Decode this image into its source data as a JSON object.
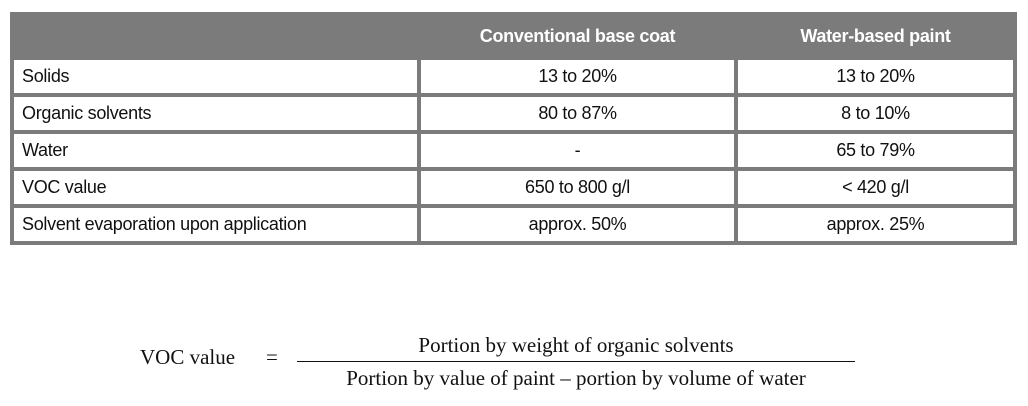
{
  "table": {
    "columns": [
      "Conventional base coat",
      "Water-based paint"
    ],
    "rows": [
      [
        "Solids",
        "13 to 20%",
        "13 to 20%"
      ],
      [
        "Organic solvents",
        "80 to 87%",
        "8 to 10%"
      ],
      [
        "Water",
        "-",
        "65 to 79%"
      ],
      [
        "VOC value",
        "650 to 800 g/l",
        "< 420 g/l"
      ],
      [
        "Solvent evaporation upon application",
        "approx. 50%",
        "approx. 25%"
      ]
    ]
  },
  "formula": {
    "lhs": "VOC value",
    "operator": "=",
    "numerator": "Portion by weight of organic solvents",
    "denominator": "Portion by value of paint – portion by volume of water"
  }
}
